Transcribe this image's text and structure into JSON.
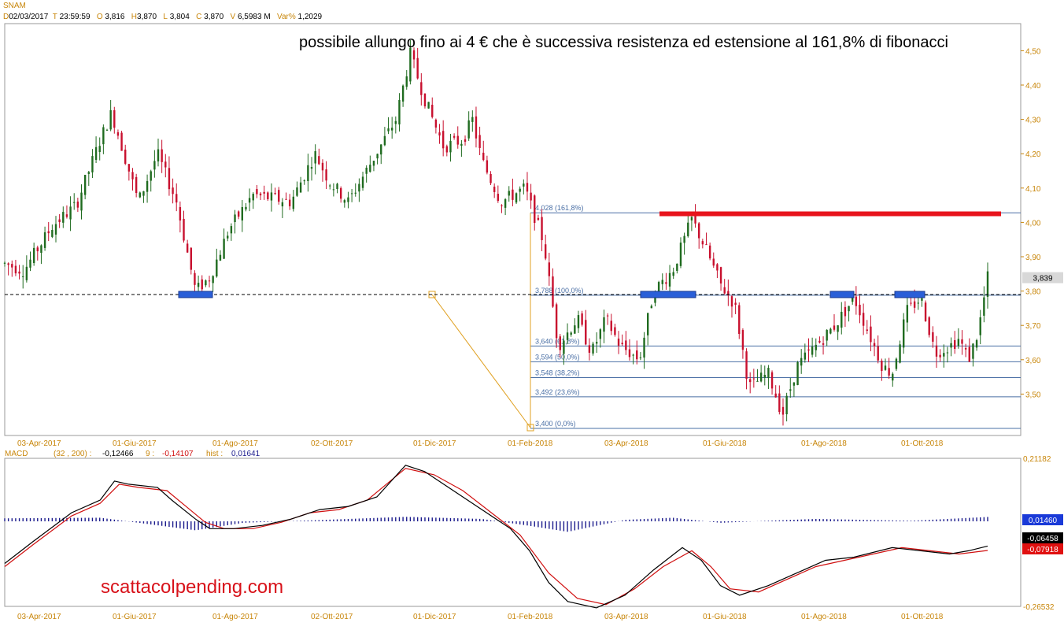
{
  "header": {
    "symbol": "SNAM",
    "d_label": "D",
    "date": "02/03/2017",
    "t_label": "T",
    "time": "23:59:59",
    "o_label": "O",
    "open": "3,816",
    "h_label": "H",
    "high": "3,870",
    "l_label": "L",
    "low": "3,804",
    "c_label": "C",
    "close": "3,870",
    "v_label": "V",
    "volume": "6,5983 M",
    "var_label": "Var%",
    "var": "1,2029"
  },
  "annotation": "possibile allungo fino ai 4 € che è successiva resistenza ed estensione al 161,8% di fibonacci",
  "watermark": "scattacolpending.com",
  "macd_header": {
    "name": "MACD",
    "params": "(32 , 200) :",
    "macd": "-0,12466",
    "signal_label": "9 :",
    "signal": "-0,14107",
    "hist_label": "hist :",
    "hist": "0,01641"
  },
  "colors": {
    "up": "#1f6b1f",
    "down": "#c8102e",
    "fib": "#4a6fa5",
    "resistance": "#e8141c",
    "accent": "#c8860a",
    "macd": "#000000",
    "signal": "#d01010",
    "hist": "#1a1a8c"
  },
  "chart_data": [
    {
      "type": "candlestick",
      "title": "SNAM",
      "x_ticks": [
        "03-Apr-2017",
        "01-Giu-2017",
        "01-Ago-2017",
        "02-Ott-2017",
        "01-Dic-2017",
        "01-Feb-2018",
        "03-Apr-2018",
        "01-Giu-2018",
        "01-Ago-2018",
        "01-Ott-2018"
      ],
      "y_ticks": [
        "4,50",
        "4,40",
        "4,30",
        "4,20",
        "4,10",
        "4,00",
        "3,90",
        "3,80",
        "3,70",
        "3,60",
        "3,50"
      ],
      "ylim": [
        3.4,
        4.52
      ],
      "last_price": "3,839",
      "support_level": 3.79,
      "resistance_level": 4.025,
      "close_path": [
        {
          "x": 0.0,
          "y": 3.88
        },
        {
          "x": 0.02,
          "y": 3.86
        },
        {
          "x": 0.05,
          "y": 3.99
        },
        {
          "x": 0.075,
          "y": 4.05
        },
        {
          "x": 0.1,
          "y": 4.24
        },
        {
          "x": 0.112,
          "y": 4.32
        },
        {
          "x": 0.125,
          "y": 4.2
        },
        {
          "x": 0.14,
          "y": 4.06
        },
        {
          "x": 0.16,
          "y": 4.2
        },
        {
          "x": 0.18,
          "y": 4.06
        },
        {
          "x": 0.2,
          "y": 3.8
        },
        {
          "x": 0.215,
          "y": 3.84
        },
        {
          "x": 0.235,
          "y": 3.98
        },
        {
          "x": 0.26,
          "y": 4.08
        },
        {
          "x": 0.3,
          "y": 4.06
        },
        {
          "x": 0.325,
          "y": 4.2
        },
        {
          "x": 0.34,
          "y": 4.12
        },
        {
          "x": 0.36,
          "y": 4.06
        },
        {
          "x": 0.385,
          "y": 4.18
        },
        {
          "x": 0.41,
          "y": 4.3
        },
        {
          "x": 0.425,
          "y": 4.49
        },
        {
          "x": 0.44,
          "y": 4.36
        },
        {
          "x": 0.46,
          "y": 4.22
        },
        {
          "x": 0.48,
          "y": 4.24
        },
        {
          "x": 0.49,
          "y": 4.3
        },
        {
          "x": 0.5,
          "y": 4.18
        },
        {
          "x": 0.52,
          "y": 4.06
        },
        {
          "x": 0.545,
          "y": 4.1
        },
        {
          "x": 0.565,
          "y": 3.94
        },
        {
          "x": 0.58,
          "y": 3.64
        },
        {
          "x": 0.6,
          "y": 3.72
        },
        {
          "x": 0.615,
          "y": 3.62
        },
        {
          "x": 0.63,
          "y": 3.72
        },
        {
          "x": 0.645,
          "y": 3.64
        },
        {
          "x": 0.665,
          "y": 3.6
        },
        {
          "x": 0.68,
          "y": 3.8
        },
        {
          "x": 0.7,
          "y": 3.86
        },
        {
          "x": 0.72,
          "y": 4.01
        },
        {
          "x": 0.735,
          "y": 3.92
        },
        {
          "x": 0.75,
          "y": 3.82
        },
        {
          "x": 0.765,
          "y": 3.76
        },
        {
          "x": 0.78,
          "y": 3.52
        },
        {
          "x": 0.8,
          "y": 3.56
        },
        {
          "x": 0.815,
          "y": 3.44
        },
        {
          "x": 0.83,
          "y": 3.58
        },
        {
          "x": 0.85,
          "y": 3.64
        },
        {
          "x": 0.87,
          "y": 3.7
        },
        {
          "x": 0.89,
          "y": 3.78
        },
        {
          "x": 0.905,
          "y": 3.68
        },
        {
          "x": 0.92,
          "y": 3.58
        },
        {
          "x": 0.93,
          "y": 3.56
        },
        {
          "x": 0.945,
          "y": 3.74
        },
        {
          "x": 0.96,
          "y": 3.78
        },
        {
          "x": 0.975,
          "y": 3.62
        },
        {
          "x": 0.99,
          "y": 3.64
        },
        {
          "x": 1.0,
          "y": 3.66
        },
        {
          "x": 1.01,
          "y": 3.6
        },
        {
          "x": 1.02,
          "y": 3.68
        },
        {
          "x": 1.03,
          "y": 3.84
        }
      ],
      "fibonacci": [
        {
          "value": 4.028,
          "label": "4,028 (161,8%)"
        },
        {
          "value": 3.788,
          "label": "3,788 (100,0%)"
        },
        {
          "value": 3.64,
          "label": "3,640 (61,8%)"
        },
        {
          "value": 3.594,
          "label": "3,594 (50,0%)"
        },
        {
          "value": 3.548,
          "label": "3,548 (38,2%)"
        },
        {
          "value": 3.492,
          "label": "3,492 (23,6%)"
        },
        {
          "value": 3.4,
          "label": "3,400 (0,0%)"
        }
      ]
    },
    {
      "type": "line",
      "title": "MACD",
      "y_ticks": [
        "0,21182",
        "-0,26532"
      ],
      "ylim": [
        -0.26532,
        0.21182
      ],
      "x_ticks": [
        "03-Apr-2017",
        "01-Giu-2017",
        "01-Ago-2017",
        "02-Ott-2017",
        "01-Dic-2017",
        "01-Feb-2018",
        "03-Apr-2018",
        "01-Giu-2018",
        "01-Ago-2018",
        "01-Ott-2018"
      ],
      "value_labels": [
        "0,01460",
        "-0,06458",
        "-0,07918"
      ],
      "series": [
        {
          "name": "MACD",
          "values": [
            [
              0,
              -0.12
            ],
            [
              0.03,
              -0.05
            ],
            [
              0.07,
              0.04
            ],
            [
              0.1,
              0.08
            ],
            [
              0.115,
              0.14
            ],
            [
              0.13,
              0.13
            ],
            [
              0.16,
              0.12
            ],
            [
              0.175,
              0.08
            ],
            [
              0.2,
              0.02
            ],
            [
              0.215,
              -0.01
            ],
            [
              0.24,
              -0.01
            ],
            [
              0.27,
              0.0
            ],
            [
              0.3,
              0.02
            ],
            [
              0.33,
              0.05
            ],
            [
              0.36,
              0.06
            ],
            [
              0.39,
              0.09
            ],
            [
              0.42,
              0.19
            ],
            [
              0.44,
              0.17
            ],
            [
              0.46,
              0.13
            ],
            [
              0.5,
              0.05
            ],
            [
              0.53,
              -0.01
            ],
            [
              0.55,
              -0.08
            ],
            [
              0.57,
              -0.18
            ],
            [
              0.59,
              -0.24
            ],
            [
              0.62,
              -0.26
            ],
            [
              0.65,
              -0.22
            ],
            [
              0.68,
              -0.14
            ],
            [
              0.71,
              -0.07
            ],
            [
              0.73,
              -0.11
            ],
            [
              0.75,
              -0.19
            ],
            [
              0.77,
              -0.22
            ],
            [
              0.8,
              -0.19
            ],
            [
              0.83,
              -0.15
            ],
            [
              0.86,
              -0.11
            ],
            [
              0.89,
              -0.1
            ],
            [
              0.93,
              -0.07
            ],
            [
              0.96,
              -0.08
            ],
            [
              0.99,
              -0.09
            ],
            [
              1.01,
              -0.08
            ],
            [
              1.03,
              -0.065
            ]
          ]
        },
        {
          "name": "9",
          "values": [
            [
              0,
              -0.13
            ],
            [
              0.03,
              -0.06
            ],
            [
              0.07,
              0.03
            ],
            [
              0.1,
              0.07
            ],
            [
              0.12,
              0.13
            ],
            [
              0.14,
              0.12
            ],
            [
              0.17,
              0.11
            ],
            [
              0.19,
              0.06
            ],
            [
              0.21,
              0.01
            ],
            [
              0.23,
              -0.01
            ],
            [
              0.26,
              -0.01
            ],
            [
              0.29,
              0.01
            ],
            [
              0.32,
              0.04
            ],
            [
              0.35,
              0.05
            ],
            [
              0.38,
              0.08
            ],
            [
              0.42,
              0.18
            ],
            [
              0.45,
              0.16
            ],
            [
              0.48,
              0.11
            ],
            [
              0.51,
              0.04
            ],
            [
              0.54,
              -0.03
            ],
            [
              0.57,
              -0.15
            ],
            [
              0.6,
              -0.23
            ],
            [
              0.63,
              -0.25
            ],
            [
              0.66,
              -0.2
            ],
            [
              0.69,
              -0.13
            ],
            [
              0.72,
              -0.08
            ],
            [
              0.74,
              -0.13
            ],
            [
              0.76,
              -0.2
            ],
            [
              0.79,
              -0.21
            ],
            [
              0.82,
              -0.17
            ],
            [
              0.85,
              -0.13
            ],
            [
              0.88,
              -0.11
            ],
            [
              0.91,
              -0.09
            ],
            [
              0.94,
              -0.07
            ],
            [
              0.97,
              -0.08
            ],
            [
              1.0,
              -0.09
            ],
            [
              1.03,
              -0.079
            ]
          ]
        },
        {
          "name": "hist",
          "values": [
            [
              0,
              0.01
            ],
            [
              0.1,
              0.012
            ],
            [
              0.2,
              -0.03
            ],
            [
              0.25,
              -0.005
            ],
            [
              0.42,
              0.015
            ],
            [
              0.5,
              0.008
            ],
            [
              0.55,
              -0.015
            ],
            [
              0.59,
              -0.035
            ],
            [
              0.65,
              0.005
            ],
            [
              0.7,
              0.012
            ],
            [
              0.75,
              -0.005
            ],
            [
              0.8,
              0.002
            ],
            [
              0.85,
              0.008
            ],
            [
              0.95,
              0.002
            ],
            [
              1.03,
              0.0146
            ]
          ]
        }
      ]
    }
  ]
}
